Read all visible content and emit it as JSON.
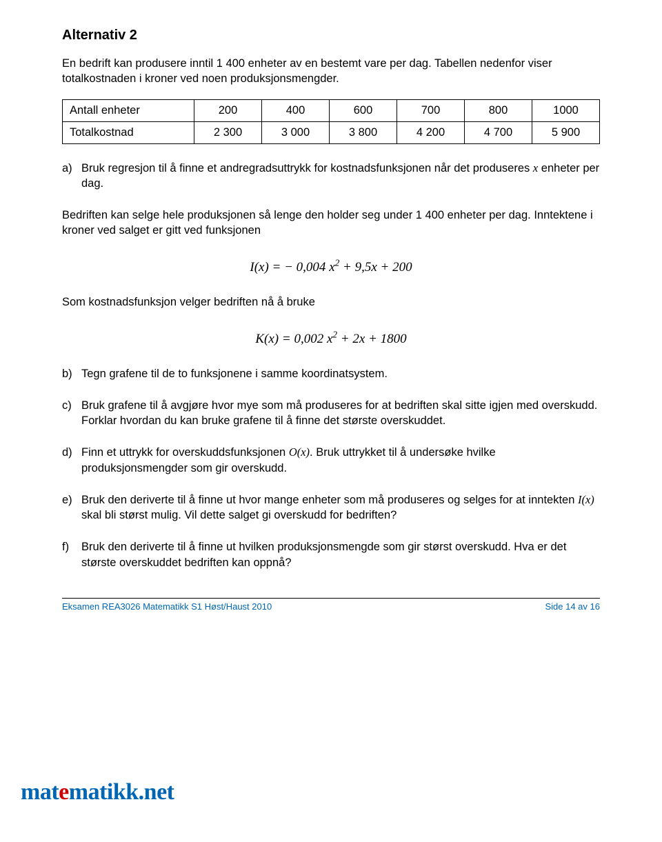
{
  "title": "Alternativ 2",
  "intro": "En bedrift kan produsere inntil 1 400 enheter av en bestemt vare per dag. Tabellen nedenfor viser totalkostnaden i kroner ved noen produksjonsmengder.",
  "table": {
    "row1_label": "Antall enheter",
    "row1": [
      "200",
      "400",
      "600",
      "700",
      "800",
      "1000"
    ],
    "row2_label": "Totalkostnad",
    "row2": [
      "2 300",
      "3 000",
      "3 800",
      "4 200",
      "4 700",
      "5 900"
    ]
  },
  "task_a_marker": "a)",
  "task_a": "Bruk regresjon til å finne et andregradsuttrykk for kostnadsfunksjonen når det produseres ",
  "task_a_var": "x",
  "task_a_after": " enheter per dag.",
  "para2": "Bedriften kan selge hele produksjonen så lenge den holder seg under 1 400 enheter per dag. Inntektene i kroner ved salget er gitt ved funksjonen",
  "formula_I": "I(x) = − 0,004 x² + 9,5x + 200",
  "para3": "Som kostnadsfunksjon velger bedriften nå å bruke",
  "formula_K": "K(x) = 0,002 x² + 2x + 1800",
  "task_b_marker": "b)",
  "task_b": "Tegn grafene til de to funksjonene i samme koordinatsystem.",
  "task_c_marker": "c)",
  "task_c": "Bruk grafene til å avgjøre hvor mye som må produseres for at bedriften skal sitte igjen med overskudd. Forklar hvordan du kan bruke grafene til å finne det største overskuddet.",
  "task_d_marker": "d)",
  "task_d_before": "Finn et uttrykk for overskuddsfunksjonen ",
  "task_d_var": "O(x)",
  "task_d_after": ". Bruk uttrykket til å undersøke hvilke produksjonsmengder som gir overskudd.",
  "task_e_marker": "e)",
  "task_e_before": "Bruk den deriverte til å finne ut hvor mange enheter som må produseres og selges for at inntekten ",
  "task_e_var": "I(x)",
  "task_e_after": " skal bli størst mulig. Vil dette salget gi overskudd for bedriften?",
  "task_f_marker": "f)",
  "task_f": "Bruk den deriverte til å finne ut hvilken produksjonsmengde som gir størst overskudd. Hva er det største overskuddet bedriften kan oppnå?",
  "footer_left": "Eksamen REA3026 Matematikk S1  Høst/Haust 2010",
  "footer_right": "Side 14 av 16",
  "logo_prefix": "mat",
  "logo_mid": "e",
  "logo_suffix": "matikk",
  "logo_dotnet": ".net"
}
